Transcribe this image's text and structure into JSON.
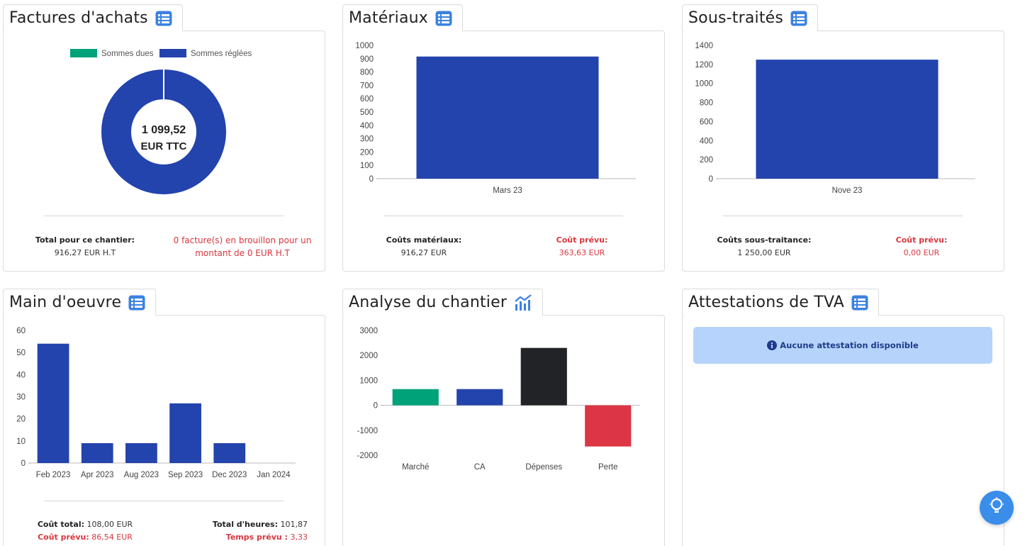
{
  "cards": {
    "factures": {
      "title": "Factures d'achats",
      "legend": [
        "Sommes dues",
        "Sommes réglées"
      ],
      "center_value": "1 099,52",
      "center_unit": "EUR TTC",
      "total_label": "Total pour ce chantier:",
      "total_value": "916,27 EUR H.T",
      "draft_line1": "0 facture(s) en brouillon pour un",
      "draft_line2": "montant de 0 EUR H.T"
    },
    "materiaux": {
      "title": "Matériaux",
      "cost_label": "Coûts matériaux:",
      "cost_value": "916,27 EUR",
      "planned_label": "Coût prévu:",
      "planned_value": "363,63 EUR"
    },
    "soustraites": {
      "title": "Sous-traités",
      "cost_label": "Coûts sous-traitance:",
      "cost_value": "1 250,00 EUR",
      "planned_label": "Coût prévu:",
      "planned_value": "0,00 EUR"
    },
    "main": {
      "title": "Main d'oeuvre",
      "total_cost_label": "Coût total:",
      "total_cost_value": "108,00 EUR",
      "planned_cost_label": "Coût prévu:",
      "planned_cost_value": "86,54 EUR",
      "hours_label": "Total d'heures:",
      "hours_value": "101,87",
      "planned_time_label": "Temps prévu :",
      "planned_time_value": "3,33"
    },
    "analyse": {
      "title": "Analyse du chantier"
    },
    "tva": {
      "title": "Attestations de TVA",
      "alert": "Aucune attestation disponible"
    }
  },
  "colors": {
    "blue": "#2343ad",
    "green": "#00a27a",
    "dark": "#212326",
    "red": "#dc3545",
    "icon": "#3b82e0"
  },
  "chart_data": [
    {
      "type": "pie",
      "variant": "donut",
      "legend_position": "top",
      "categories": [
        "Sommes dues",
        "Sommes réglées"
      ],
      "values": [
        0,
        1099.52
      ],
      "colors": [
        "#00a27a",
        "#2343ad"
      ]
    },
    {
      "type": "bar",
      "categories": [
        "Mars 23"
      ],
      "values": [
        916.27
      ],
      "ylim": [
        0,
        1000
      ],
      "yticks": [
        0,
        100,
        200,
        300,
        400,
        500,
        600,
        700,
        800,
        900,
        1000
      ],
      "color": "#2343ad"
    },
    {
      "type": "bar",
      "categories": [
        "Nove 23"
      ],
      "values": [
        1250
      ],
      "ylim": [
        0,
        1400
      ],
      "yticks": [
        0,
        200,
        400,
        600,
        800,
        1000,
        1200,
        1400
      ],
      "color": "#2343ad"
    },
    {
      "type": "bar",
      "categories": [
        "Feb 2023",
        "Apr 2023",
        "Aug 2023",
        "Sep 2023",
        "Dec 2023",
        "Jan 2024"
      ],
      "values": [
        54,
        9,
        9,
        27,
        9,
        0
      ],
      "ylim": [
        0,
        60
      ],
      "yticks": [
        0,
        10,
        20,
        30,
        40,
        50,
        60
      ],
      "color": "#2343ad"
    },
    {
      "type": "bar",
      "categories": [
        "Marché",
        "CA",
        "Dépenses",
        "Perte"
      ],
      "values": [
        650,
        650,
        2300,
        -1650
      ],
      "ylim": [
        -2000,
        3000
      ],
      "yticks": [
        -2000,
        -1000,
        0,
        1000,
        2000,
        3000
      ],
      "colors": [
        "#00a27a",
        "#2343ad",
        "#212326",
        "#dc3545"
      ]
    }
  ]
}
